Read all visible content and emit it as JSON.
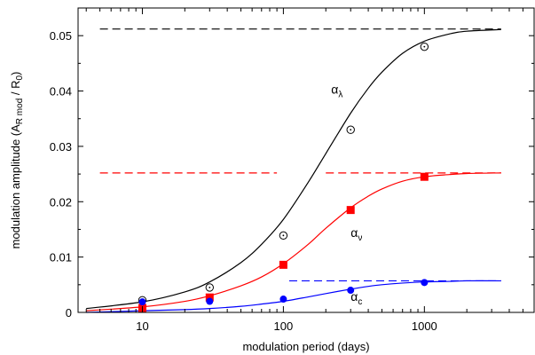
{
  "chart_data": {
    "type": "scatter",
    "title": "",
    "xlabel": "modulation period (days)",
    "ylabel": {
      "main": "modulation amplitude (A",
      "sub1": "R mod",
      "mid": " / R",
      "sub2": "0",
      "end": ")"
    },
    "xscale": "log",
    "xlim": [
      3.5,
      6000
    ],
    "ylim": [
      0,
      0.055
    ],
    "xticks": [
      {
        "v": 10,
        "label": "10"
      },
      {
        "v": 100,
        "label": "100"
      },
      {
        "v": 1000,
        "label": "1000"
      }
    ],
    "yticks": [
      {
        "v": 0,
        "label": "0"
      },
      {
        "v": 0.01,
        "label": "0.01"
      },
      {
        "v": 0.02,
        "label": "0.02"
      },
      {
        "v": 0.03,
        "label": "0.03"
      },
      {
        "v": 0.04,
        "label": "0.04"
      },
      {
        "v": 0.05,
        "label": "0.05"
      }
    ],
    "grid": false,
    "series": [
      {
        "label": {
          "base": "α",
          "sub": "λ"
        },
        "color": "#000000",
        "marker": "open-circle",
        "points": [
          [
            10,
            0.0022
          ],
          [
            30,
            0.0045
          ],
          [
            100,
            0.0139
          ],
          [
            300,
            0.033
          ],
          [
            1000,
            0.048
          ]
        ],
        "asymptote": 0.0512,
        "asymptote_segments": [
          [
            5,
            3500
          ]
        ],
        "curve": [
          [
            4,
            0.0007
          ],
          [
            10,
            0.0019
          ],
          [
            20,
            0.0037
          ],
          [
            30,
            0.0055
          ],
          [
            50,
            0.009
          ],
          [
            70,
            0.0123
          ],
          [
            100,
            0.0168
          ],
          [
            150,
            0.0235
          ],
          [
            200,
            0.0287
          ],
          [
            300,
            0.036
          ],
          [
            400,
            0.0405
          ],
          [
            500,
            0.0434
          ],
          [
            700,
            0.0468
          ],
          [
            1000,
            0.049
          ],
          [
            1500,
            0.0503
          ],
          [
            2000,
            0.0508
          ],
          [
            3500,
            0.0511
          ]
        ],
        "label_at": [
          240,
          0.0395
        ]
      },
      {
        "label": {
          "base": "α",
          "sub": "ν"
        },
        "color": "#ff0000",
        "marker": "filled-square",
        "points": [
          [
            10,
            0.0008
          ],
          [
            30,
            0.0027
          ],
          [
            100,
            0.0086
          ],
          [
            300,
            0.0185
          ],
          [
            1000,
            0.0245
          ]
        ],
        "asymptote": 0.0252,
        "asymptote_segments": [
          [
            5,
            90
          ],
          [
            200,
            3500
          ]
        ],
        "curve": [
          [
            4,
            0.0003
          ],
          [
            10,
            0.001
          ],
          [
            20,
            0.002
          ],
          [
            30,
            0.003
          ],
          [
            50,
            0.0048
          ],
          [
            70,
            0.0064
          ],
          [
            100,
            0.0088
          ],
          [
            150,
            0.0123
          ],
          [
            200,
            0.0152
          ],
          [
            300,
            0.0189
          ],
          [
            400,
            0.021
          ],
          [
            500,
            0.0223
          ],
          [
            700,
            0.0237
          ],
          [
            1000,
            0.0245
          ],
          [
            1500,
            0.0249
          ],
          [
            2000,
            0.0251
          ],
          [
            3500,
            0.0252
          ]
        ],
        "label_at": [
          330,
          0.0136
        ]
      },
      {
        "label": {
          "base": "α",
          "sub": "c"
        },
        "color": "#0000ff",
        "marker": "filled-circle",
        "points": [
          [
            10,
            0.0019
          ],
          [
            30,
            0.002
          ],
          [
            100,
            0.0024
          ],
          [
            300,
            0.004
          ],
          [
            1000,
            0.0054
          ]
        ],
        "asymptote": 0.0057,
        "asymptote_segments": [
          [
            110,
            3500
          ]
        ],
        "curve": [
          [
            4,
            0.0
          ],
          [
            10,
            0.0003
          ],
          [
            20,
            0.0005
          ],
          [
            30,
            0.0007
          ],
          [
            50,
            0.0011
          ],
          [
            70,
            0.0015
          ],
          [
            100,
            0.002
          ],
          [
            150,
            0.0028
          ],
          [
            200,
            0.0034
          ],
          [
            300,
            0.0042
          ],
          [
            400,
            0.0047
          ],
          [
            500,
            0.005
          ],
          [
            700,
            0.0053
          ],
          [
            1000,
            0.0055
          ],
          [
            1500,
            0.0056
          ],
          [
            2000,
            0.0057
          ],
          [
            3500,
            0.0057
          ]
        ],
        "label_at": [
          330,
          0.0021
        ]
      }
    ]
  }
}
